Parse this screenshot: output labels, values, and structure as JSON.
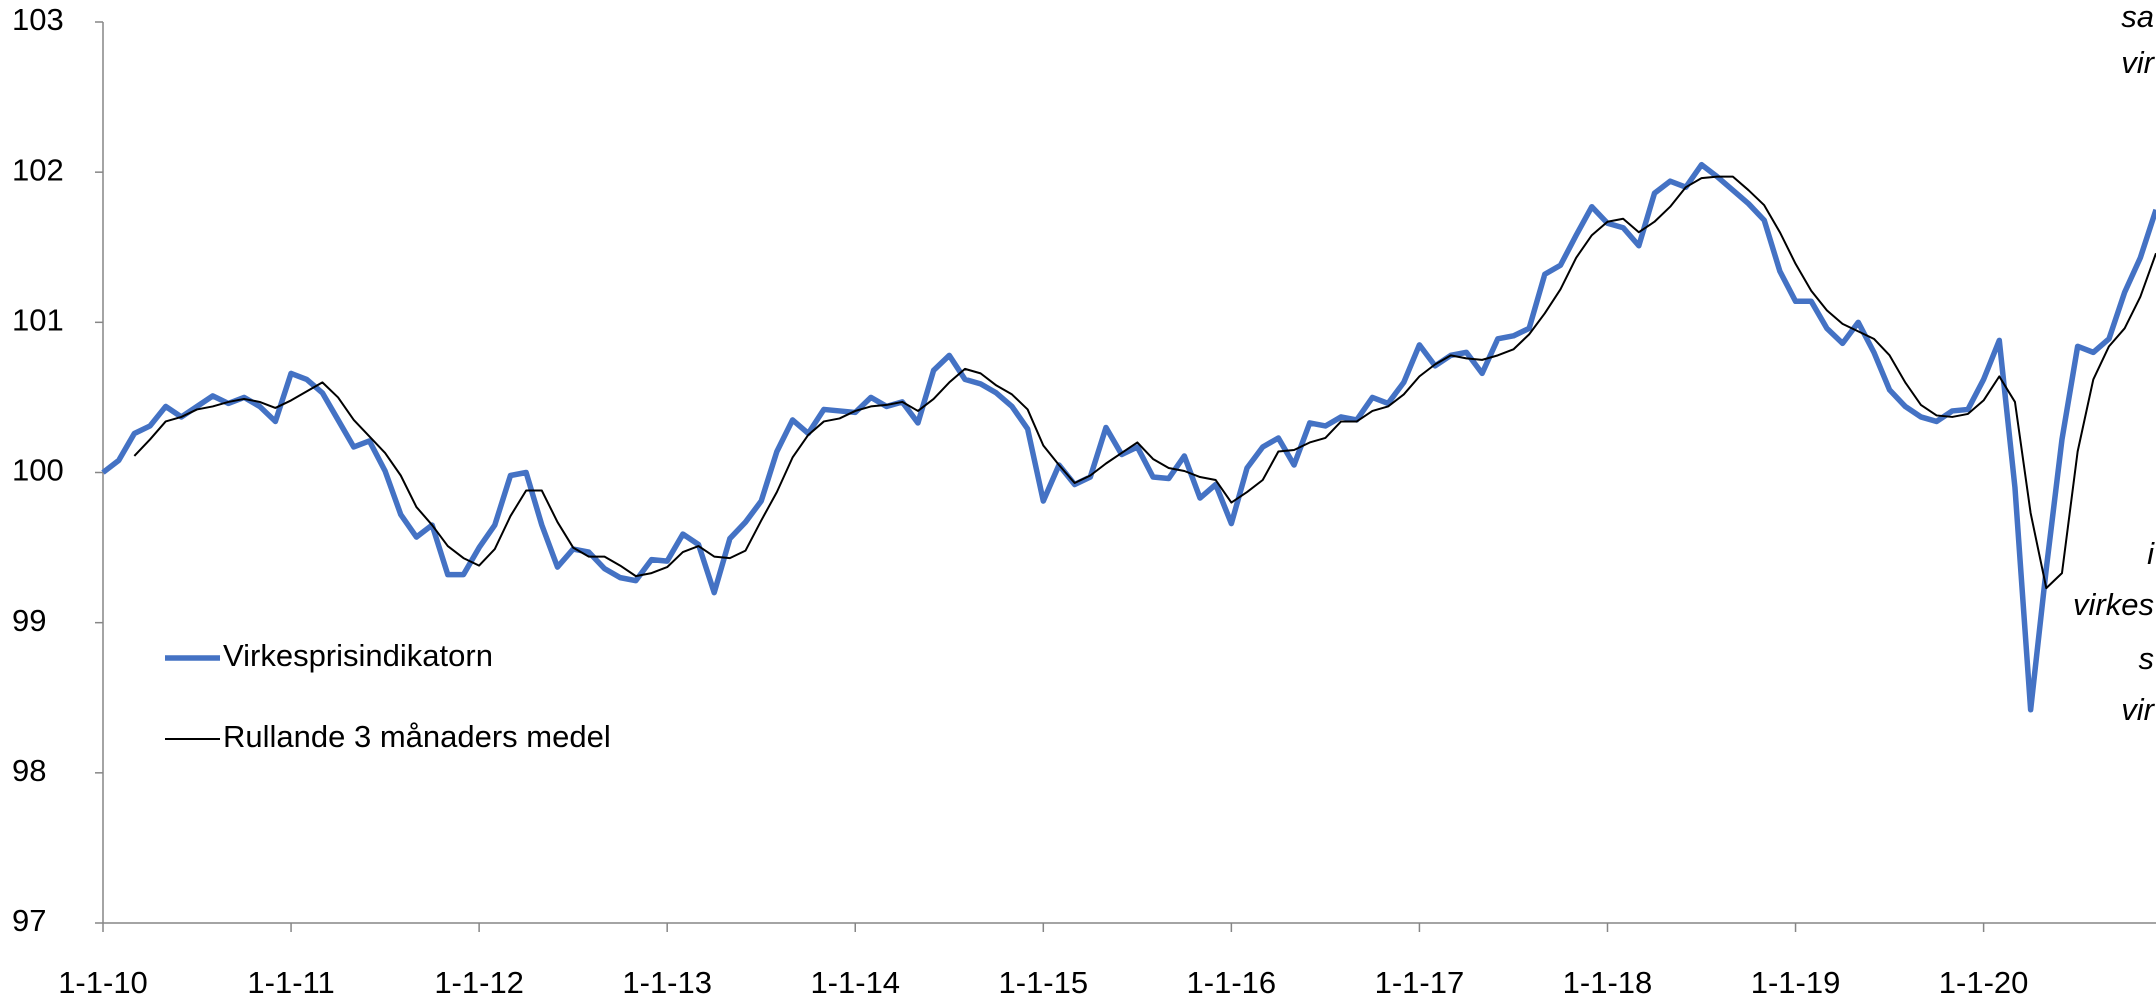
{
  "chart_data": {
    "type": "line",
    "categories": [
      "1-1-10",
      null,
      null,
      null,
      null,
      null,
      null,
      null,
      null,
      null,
      null,
      null,
      "1-1-11",
      null,
      null,
      null,
      null,
      null,
      null,
      null,
      null,
      null,
      null,
      null,
      "1-1-12",
      null,
      null,
      null,
      null,
      null,
      null,
      null,
      null,
      null,
      null,
      null,
      "1-1-13",
      null,
      null,
      null,
      null,
      null,
      null,
      null,
      null,
      null,
      null,
      null,
      "1-1-14",
      null,
      null,
      null,
      null,
      null,
      null,
      null,
      null,
      null,
      null,
      null,
      "1-1-15",
      null,
      null,
      null,
      null,
      null,
      null,
      null,
      null,
      null,
      null,
      null,
      "1-1-16",
      null,
      null,
      null,
      null,
      null,
      null,
      null,
      null,
      null,
      null,
      null,
      "1-1-17",
      null,
      null,
      null,
      null,
      null,
      null,
      null,
      null,
      null,
      null,
      null,
      "1-1-18",
      null,
      null,
      null,
      null,
      null,
      null,
      null,
      null,
      null,
      null,
      null,
      "1-1-19",
      null,
      null,
      null,
      null,
      null,
      null,
      null,
      null,
      null,
      null,
      null,
      "1-1-20",
      null,
      null,
      null,
      null,
      null,
      null,
      null,
      null,
      null,
      null,
      null
    ],
    "series": [
      {
        "name": "Virkesprisindikatorn",
        "color": "#4472c4",
        "values": [
          100.0,
          100.08,
          100.26,
          100.31,
          100.44,
          100.37,
          100.44,
          100.51,
          100.46,
          100.5,
          100.44,
          100.34,
          100.66,
          100.62,
          100.53,
          100.35,
          100.17,
          100.21,
          100.01,
          99.72,
          99.57,
          99.65,
          99.32,
          99.32,
          99.5,
          99.65,
          99.98,
          100.0,
          99.65,
          99.37,
          99.49,
          99.47,
          99.36,
          99.3,
          99.28,
          99.42,
          99.41,
          99.59,
          99.52,
          99.2,
          99.56,
          99.67,
          99.81,
          100.14,
          100.35,
          100.26,
          100.42,
          100.41,
          100.4,
          100.5,
          100.44,
          100.47,
          100.33,
          100.68,
          100.78,
          100.62,
          100.59,
          100.53,
          100.44,
          100.29,
          99.81,
          100.05,
          99.92,
          99.97,
          100.3,
          100.12,
          100.17,
          99.97,
          99.96,
          100.11,
          99.83,
          99.92,
          99.66,
          100.03,
          100.17,
          100.23,
          100.05,
          100.33,
          100.31,
          100.37,
          100.35,
          100.5,
          100.46,
          100.6,
          100.85,
          100.71,
          100.78,
          100.8,
          100.66,
          100.89,
          100.91,
          100.96,
          101.32,
          101.38,
          101.58,
          101.77,
          101.66,
          101.63,
          101.51,
          101.86,
          101.94,
          101.9,
          102.05,
          101.97,
          101.88,
          101.79,
          101.68,
          101.34,
          101.14,
          101.14,
          100.96,
          100.86,
          101.0,
          100.8,
          100.55,
          100.44,
          100.37,
          100.34,
          100.41,
          100.42,
          100.62,
          100.88,
          99.9,
          98.42,
          99.36,
          100.22,
          100.84,
          100.8,
          100.89,
          101.2,
          101.43,
          101.75
        ]
      },
      {
        "name": "Rullande 3 månaders medel",
        "color": "#000000",
        "values": [
          null,
          null,
          100.11,
          100.22,
          100.34,
          100.37,
          100.42,
          100.44,
          100.47,
          100.49,
          100.47,
          100.43,
          100.48,
          100.54,
          100.6,
          100.5,
          100.35,
          100.24,
          100.13,
          99.98,
          99.77,
          99.65,
          99.51,
          99.43,
          99.38,
          99.49,
          99.71,
          99.88,
          99.88,
          99.67,
          99.5,
          99.44,
          99.44,
          99.38,
          99.31,
          99.33,
          99.37,
          99.47,
          99.51,
          99.44,
          99.43,
          99.48,
          99.68,
          99.87,
          100.1,
          100.25,
          100.34,
          100.36,
          100.41,
          100.44,
          100.45,
          100.47,
          100.41,
          100.49,
          100.6,
          100.69,
          100.66,
          100.58,
          100.52,
          100.42,
          100.18,
          100.05,
          99.93,
          99.98,
          100.06,
          100.13,
          100.2,
          100.09,
          100.03,
          100.01,
          99.97,
          99.95,
          99.8,
          99.87,
          99.95,
          100.14,
          100.15,
          100.2,
          100.23,
          100.34,
          100.34,
          100.41,
          100.44,
          100.52,
          100.64,
          100.72,
          100.78,
          100.76,
          100.75,
          100.78,
          100.82,
          100.92,
          101.06,
          101.22,
          101.43,
          101.58,
          101.67,
          101.69,
          101.6,
          101.67,
          101.77,
          101.9,
          101.96,
          101.97,
          101.97,
          101.88,
          101.78,
          101.6,
          101.39,
          101.21,
          101.08,
          100.99,
          100.94,
          100.89,
          100.78,
          100.6,
          100.45,
          100.38,
          100.37,
          100.39,
          100.48,
          100.64,
          100.47,
          99.73,
          99.23,
          99.33,
          100.14,
          100.62,
          100.84,
          100.96,
          101.17,
          101.46
        ]
      }
    ],
    "ylim": [
      97,
      103
    ],
    "yticks": [
      97,
      98,
      99,
      100,
      101,
      102,
      103
    ],
    "grid": false,
    "legend": "left",
    "annotations": [
      "sa",
      "vir",
      "i",
      "virkes",
      "s",
      "vir"
    ]
  }
}
